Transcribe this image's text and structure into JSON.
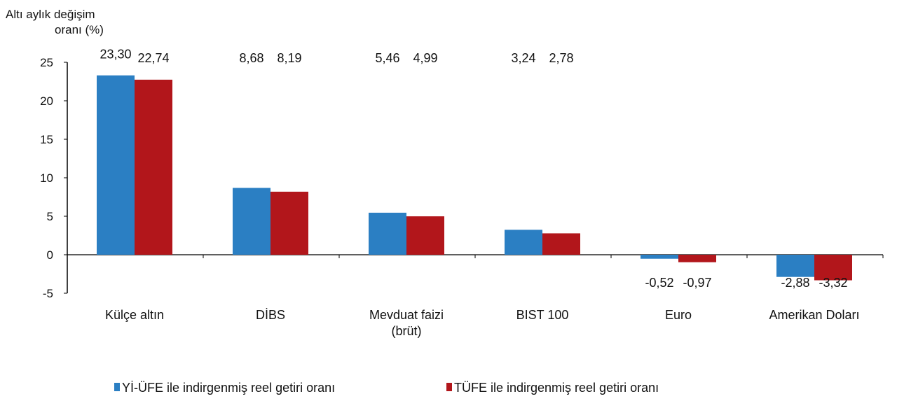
{
  "chart_data": {
    "type": "bar",
    "ylabel": "Altı aylık değişim oranı (%)",
    "ylabel_lines": [
      "Altı aylık değişim",
      "oranı (%)"
    ],
    "categories": [
      "Külçe altın",
      "DİBS",
      "Mevduat faizi (brüt)",
      "BIST 100",
      "Euro",
      "Amerikan Doları"
    ],
    "category_lines": [
      [
        "Külçe altın"
      ],
      [
        "DİBS"
      ],
      [
        "Mevduat faizi",
        "(brüt)"
      ],
      [
        "BIST 100"
      ],
      [
        "Euro"
      ],
      [
        "Amerikan Doları"
      ]
    ],
    "series": [
      {
        "name": "Yİ-ÜFE ile indirgenmiş reel getiri oranı",
        "color": "#2b7fc3",
        "values": [
          23.3,
          8.68,
          5.46,
          3.24,
          -0.52,
          -2.88
        ],
        "labels": [
          "23,30",
          "8,68",
          "5,46",
          "3,24",
          "-0,52",
          "-2,88"
        ]
      },
      {
        "name": "TÜFE ile indirgenmiş reel getiri oranı",
        "color": "#b2161b",
        "values": [
          22.74,
          8.19,
          4.99,
          2.78,
          -0.97,
          -3.32
        ],
        "labels": [
          "22,74",
          "8,19",
          "4,99",
          "2,78",
          "-0,97",
          "-3,32"
        ]
      }
    ],
    "ylim": [
      -5,
      25
    ],
    "yticks": [
      -5,
      0,
      5,
      10,
      15,
      20,
      25
    ],
    "grid": false,
    "legend": "bottom"
  }
}
